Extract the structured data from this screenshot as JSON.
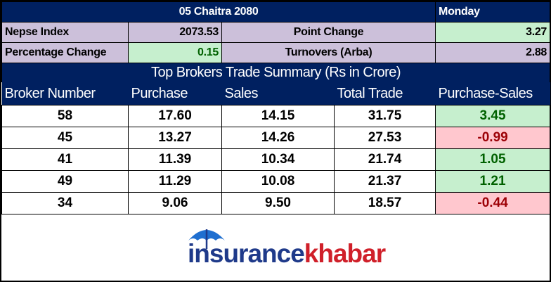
{
  "header": {
    "date": "05 Chaitra 2080",
    "day": "Monday"
  },
  "summary": {
    "rows": [
      [
        "Nepse Index",
        "2073.53",
        "Point Change",
        "3.27"
      ],
      [
        "Percentage Change",
        "0.15",
        "Turnovers (Arba)",
        "2.88"
      ]
    ]
  },
  "table": {
    "title": "Top Brokers Trade Summary (Rs in Crore)",
    "columns": [
      "Broker Number",
      "Purchase",
      "Sales",
      "Total Trade",
      "Purchase-Sales"
    ],
    "rows": [
      [
        "58",
        "17.60",
        "14.15",
        "31.75",
        "3.45"
      ],
      [
        "45",
        "13.27",
        "14.26",
        "27.53",
        "-0.99"
      ],
      [
        "41",
        "11.39",
        "10.34",
        "21.74",
        "1.05"
      ],
      [
        "49",
        "11.29",
        "10.08",
        "21.37",
        "1.21"
      ],
      [
        "34",
        "9.06",
        "9.50",
        "18.57",
        "-0.44"
      ]
    ]
  },
  "logo": {
    "part1": "insurance",
    "part2": "khabar"
  }
}
